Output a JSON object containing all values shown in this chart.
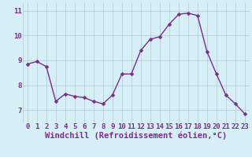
{
  "x": [
    0,
    1,
    2,
    3,
    4,
    5,
    6,
    7,
    8,
    9,
    10,
    11,
    12,
    13,
    14,
    15,
    16,
    17,
    18,
    19,
    20,
    21,
    22,
    23
  ],
  "y": [
    8.85,
    8.95,
    8.75,
    7.35,
    7.65,
    7.55,
    7.5,
    7.35,
    7.25,
    7.6,
    8.45,
    8.45,
    9.4,
    9.85,
    9.95,
    10.45,
    10.85,
    10.9,
    10.8,
    9.35,
    8.45,
    7.6,
    7.25,
    6.85
  ],
  "line_color": "#7b2d8b",
  "marker": "D",
  "marker_size": 2.5,
  "line_width": 1.0,
  "xlabel": "Windchill (Refroidissement éolien,°C)",
  "xlabel_fontsize": 7.5,
  "bg_color": "#d6eef5",
  "grid_color": "#b0c8d0",
  "xlim": [
    -0.5,
    23.5
  ],
  "ylim": [
    6.5,
    11.3
  ],
  "yticks": [
    7,
    8,
    9,
    10,
    11
  ],
  "xticks": [
    0,
    1,
    2,
    3,
    4,
    5,
    6,
    7,
    8,
    9,
    10,
    11,
    12,
    13,
    14,
    15,
    16,
    17,
    18,
    19,
    20,
    21,
    22,
    23
  ],
  "tick_fontsize": 6.5,
  "tick_color": "#7b2d8b"
}
